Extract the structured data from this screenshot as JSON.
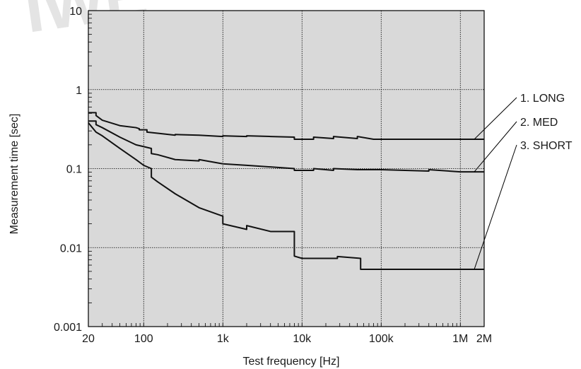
{
  "watermark": "IWE",
  "chart_data": {
    "type": "line",
    "title": "",
    "xlabel": "Test frequency [Hz]",
    "ylabel": "Measurement time [sec]",
    "xscale": "log",
    "yscale": "log",
    "xlim": [
      20,
      2000000
    ],
    "ylim": [
      0.001,
      10
    ],
    "grid": true,
    "x_tick_values": [
      20,
      100,
      1000,
      10000,
      100000,
      1000000,
      2000000
    ],
    "x_tick_labels": [
      "20",
      "100",
      "1k",
      "10k",
      "100k",
      "1M",
      "2M"
    ],
    "y_tick_values": [
      0.001,
      0.01,
      0.1,
      1,
      10
    ],
    "y_tick_labels": [
      "0.001",
      "0.01",
      "0.1",
      "1",
      "10"
    ],
    "legend_placement": "right",
    "series": [
      {
        "name": "1. LONG",
        "points": [
          [
            20,
            0.51
          ],
          [
            25,
            0.51
          ],
          [
            25,
            0.47
          ],
          [
            30,
            0.41
          ],
          [
            50,
            0.35
          ],
          [
            80,
            0.33
          ],
          [
            88,
            0.32
          ],
          [
            88,
            0.31
          ],
          [
            100,
            0.31
          ],
          [
            110,
            0.31
          ],
          [
            110,
            0.29
          ],
          [
            150,
            0.28
          ],
          [
            250,
            0.265
          ],
          [
            250,
            0.27
          ],
          [
            500,
            0.265
          ],
          [
            1000,
            0.255
          ],
          [
            1000,
            0.26
          ],
          [
            2000,
            0.255
          ],
          [
            2000,
            0.26
          ],
          [
            4000,
            0.255
          ],
          [
            8000,
            0.25
          ],
          [
            8000,
            0.235
          ],
          [
            10000,
            0.235
          ],
          [
            14000,
            0.235
          ],
          [
            14000,
            0.25
          ],
          [
            25000,
            0.24
          ],
          [
            25000,
            0.255
          ],
          [
            50000,
            0.24
          ],
          [
            50000,
            0.255
          ],
          [
            80000,
            0.235
          ],
          [
            2000000,
            0.235
          ]
        ]
      },
      {
        "name": "2. MED",
        "points": [
          [
            20,
            0.4
          ],
          [
            25,
            0.4
          ],
          [
            25,
            0.36
          ],
          [
            30,
            0.33
          ],
          [
            50,
            0.25
          ],
          [
            80,
            0.2
          ],
          [
            100,
            0.19
          ],
          [
            125,
            0.18
          ],
          [
            125,
            0.155
          ],
          [
            150,
            0.15
          ],
          [
            250,
            0.13
          ],
          [
            500,
            0.125
          ],
          [
            500,
            0.13
          ],
          [
            1000,
            0.115
          ],
          [
            2000,
            0.11
          ],
          [
            4000,
            0.105
          ],
          [
            8000,
            0.1
          ],
          [
            8000,
            0.095
          ],
          [
            14000,
            0.095
          ],
          [
            14000,
            0.1
          ],
          [
            25000,
            0.095
          ],
          [
            25000,
            0.1
          ],
          [
            50000,
            0.097
          ],
          [
            100000,
            0.097
          ],
          [
            400000,
            0.093
          ],
          [
            400000,
            0.097
          ],
          [
            1000000,
            0.091
          ],
          [
            2000000,
            0.091
          ]
        ]
      },
      {
        "name": "3. SHORT",
        "points": [
          [
            20,
            0.38
          ],
          [
            25,
            0.29
          ],
          [
            30,
            0.26
          ],
          [
            50,
            0.18
          ],
          [
            80,
            0.13
          ],
          [
            100,
            0.11
          ],
          [
            125,
            0.1
          ],
          [
            125,
            0.078
          ],
          [
            150,
            0.068
          ],
          [
            250,
            0.048
          ],
          [
            500,
            0.032
          ],
          [
            1000,
            0.025
          ],
          [
            1000,
            0.02
          ],
          [
            2000,
            0.017
          ],
          [
            2000,
            0.019
          ],
          [
            4000,
            0.016
          ],
          [
            8000,
            0.016
          ],
          [
            8000,
            0.0078
          ],
          [
            10000,
            0.0073
          ],
          [
            28000,
            0.0073
          ],
          [
            28000,
            0.0077
          ],
          [
            55000,
            0.0073
          ],
          [
            55000,
            0.0053
          ],
          [
            2000000,
            0.0053
          ]
        ]
      }
    ]
  }
}
